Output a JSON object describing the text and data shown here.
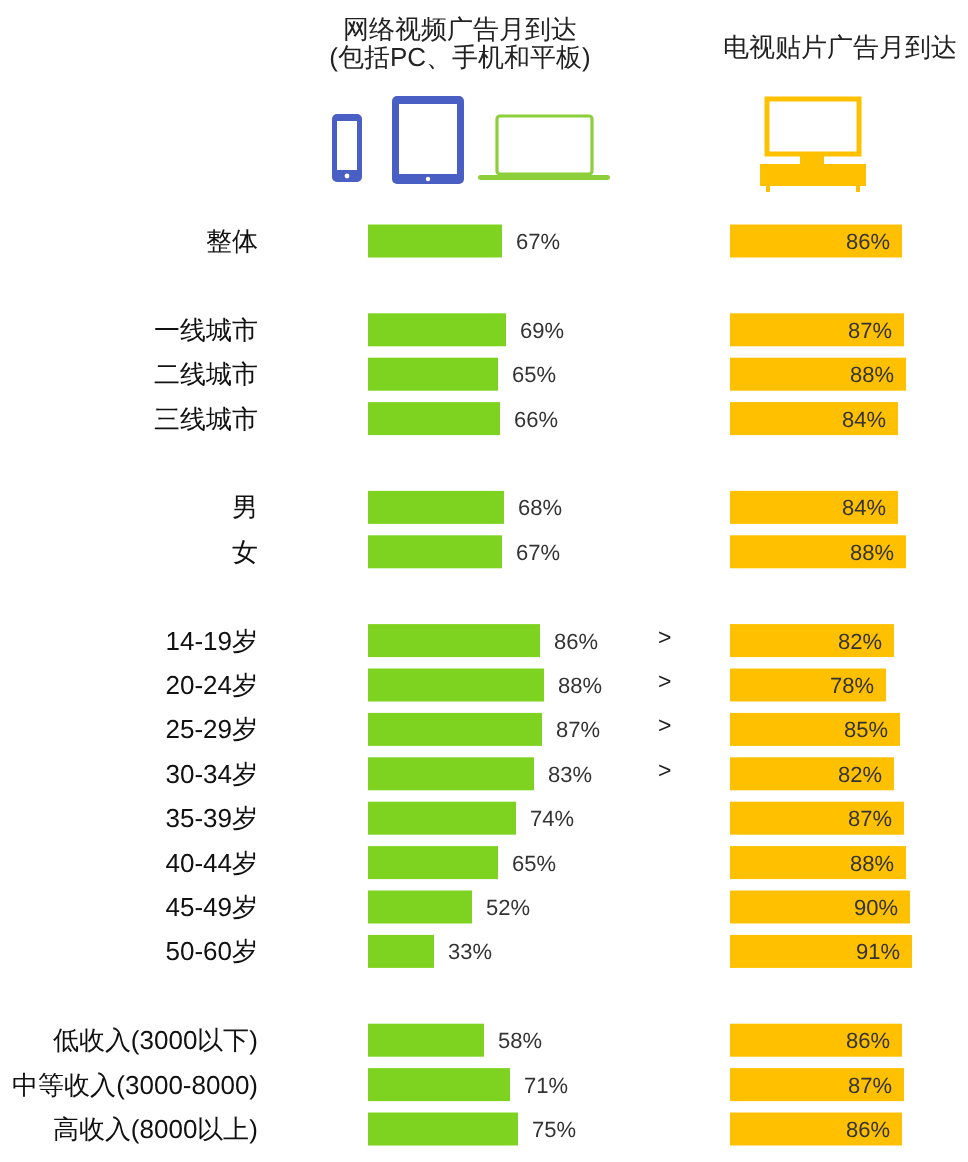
{
  "chart_data": [
    {
      "type": "bar",
      "orientation": "horizontal",
      "title": "网络视频广告月到达",
      "subtitle": "(包括PC、手机和平板)",
      "categories": [
        "整体",
        null,
        "一线城市",
        "二线城市",
        "三线城市",
        null,
        "男",
        "女",
        null,
        "14-19岁",
        "20-24岁",
        "25-29岁",
        "30-34岁",
        "35-39岁",
        "40-44岁",
        "45-49岁",
        "50-60岁",
        null,
        "低收入(3000以下)",
        "中等收入(3000-8000)",
        "高收入(8000以上)"
      ],
      "values": [
        67,
        null,
        69,
        65,
        66,
        null,
        68,
        67,
        null,
        86,
        88,
        87,
        83,
        74,
        65,
        52,
        33,
        null,
        58,
        71,
        75
      ],
      "value_labels": [
        "67%",
        null,
        "69%",
        "65%",
        "66%",
        null,
        "68%",
        "67%",
        null,
        "86%",
        "88%",
        "87%",
        "83%",
        "74%",
        "65%",
        "52%",
        "33%",
        null,
        "58%",
        "71%",
        "75%"
      ],
      "color": "#7ed321",
      "annotations": [
        ">",
        ">",
        ">",
        ">"
      ]
    },
    {
      "type": "bar",
      "orientation": "horizontal",
      "title": "电视贴片广告月到达",
      "categories": [
        null,
        null,
        null,
        null,
        null,
        null,
        null,
        null,
        null,
        null,
        null,
        null,
        null,
        null,
        null,
        null,
        null,
        null,
        null,
        null,
        null
      ],
      "values": [
        86,
        null,
        87,
        88,
        84,
        null,
        84,
        88,
        null,
        82,
        78,
        85,
        82,
        87,
        88,
        90,
        91,
        null,
        86,
        87,
        86
      ],
      "value_labels": [
        "86%",
        null,
        "87%",
        "88%",
        "84%",
        null,
        "84%",
        "88%",
        null,
        "82%",
        "78%",
        "85%",
        "82%",
        "87%",
        "88%",
        "90%",
        "91%",
        null,
        "86%",
        "87%",
        "86%"
      ],
      "color": "#ffc000"
    }
  ]
}
